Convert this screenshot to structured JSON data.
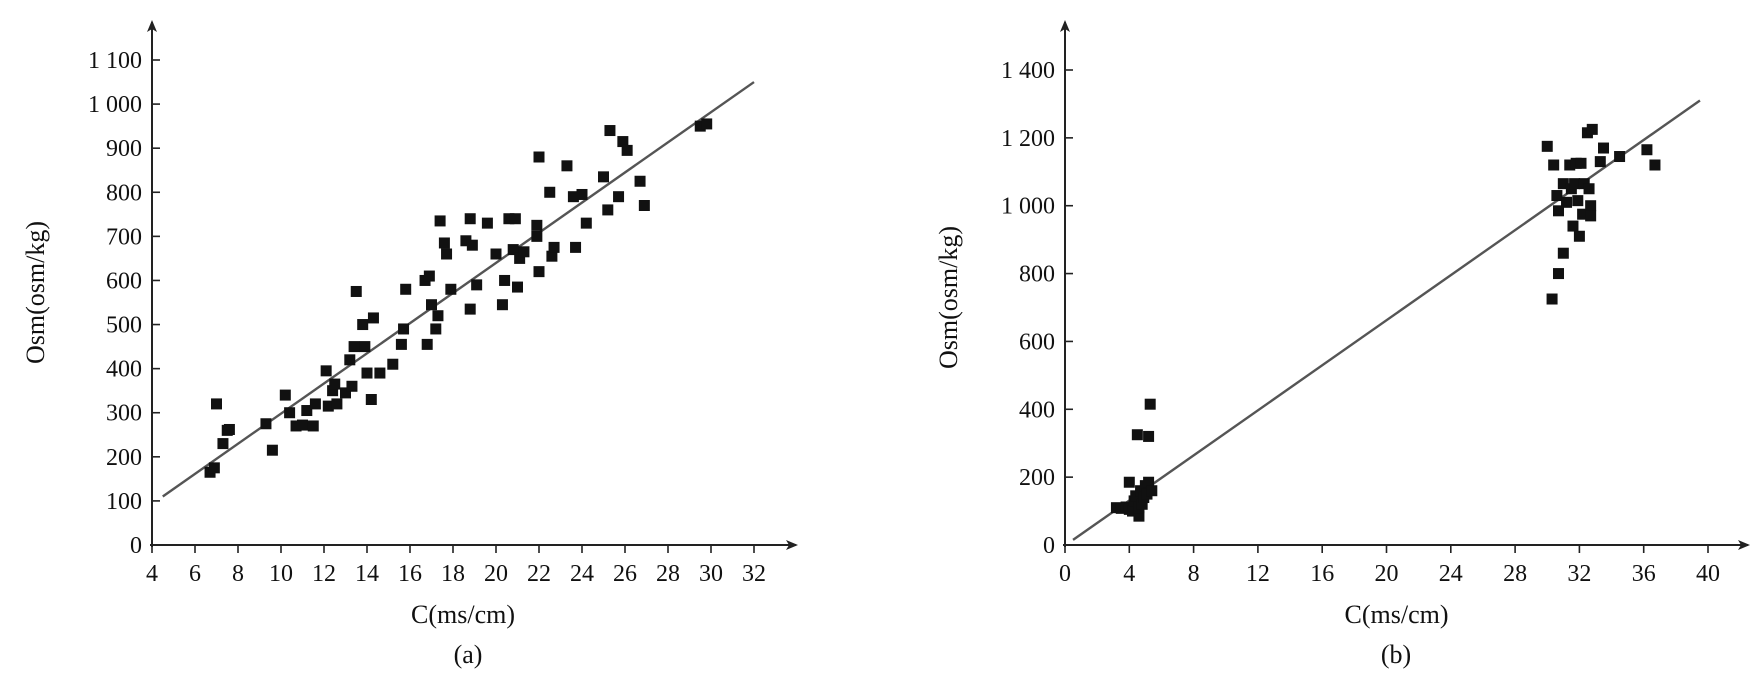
{
  "chart_data": [
    {
      "type": "scatter",
      "panel_label": "(a)",
      "xlabel": "C(ms/cm)",
      "ylabel": "Osm(osm/kg)",
      "xlim": [
        4,
        32
      ],
      "ylim": [
        0,
        1100
      ],
      "xticks": [
        "4",
        "6",
        "8",
        "10",
        "12",
        "14",
        "16",
        "18",
        "20",
        "22",
        "24",
        "26",
        "28",
        "30",
        "32"
      ],
      "yticks": [
        "0",
        "100",
        "200",
        "300",
        "400",
        "500",
        "600",
        "700",
        "800",
        "900",
        "1 000",
        "1 100"
      ],
      "fit_line": [
        [
          4.5,
          110
        ],
        [
          32,
          1050
        ]
      ],
      "points": [
        [
          6.7,
          165
        ],
        [
          6.9,
          175
        ],
        [
          7.0,
          320
        ],
        [
          7.3,
          230
        ],
        [
          7.5,
          260
        ],
        [
          7.6,
          262
        ],
        [
          9.3,
          275
        ],
        [
          9.6,
          215
        ],
        [
          10.2,
          340
        ],
        [
          10.4,
          300
        ],
        [
          10.7,
          270
        ],
        [
          11.0,
          272
        ],
        [
          11.2,
          305
        ],
        [
          11.5,
          270
        ],
        [
          11.6,
          320
        ],
        [
          12.1,
          395
        ],
        [
          12.2,
          315
        ],
        [
          12.4,
          350
        ],
        [
          12.5,
          365
        ],
        [
          12.6,
          320
        ],
        [
          13.0,
          345
        ],
        [
          13.2,
          420
        ],
        [
          13.3,
          360
        ],
        [
          13.4,
          450
        ],
        [
          13.5,
          575
        ],
        [
          13.8,
          500
        ],
        [
          13.9,
          450
        ],
        [
          14.0,
          390
        ],
        [
          14.2,
          330
        ],
        [
          14.3,
          515
        ],
        [
          14.6,
          390
        ],
        [
          15.2,
          410
        ],
        [
          15.6,
          455
        ],
        [
          15.7,
          490
        ],
        [
          15.8,
          580
        ],
        [
          16.7,
          600
        ],
        [
          16.8,
          455
        ],
        [
          16.9,
          610
        ],
        [
          17.0,
          545
        ],
        [
          17.2,
          490
        ],
        [
          17.3,
          520
        ],
        [
          17.4,
          735
        ],
        [
          17.6,
          685
        ],
        [
          17.7,
          660
        ],
        [
          17.9,
          580
        ],
        [
          18.6,
          690
        ],
        [
          18.8,
          535
        ],
        [
          18.8,
          740
        ],
        [
          18.9,
          680
        ],
        [
          19.1,
          590
        ],
        [
          19.6,
          730
        ],
        [
          20.0,
          660
        ],
        [
          20.3,
          545
        ],
        [
          20.4,
          600
        ],
        [
          20.6,
          740
        ],
        [
          20.8,
          670
        ],
        [
          20.9,
          740
        ],
        [
          21.0,
          585
        ],
        [
          21.1,
          650
        ],
        [
          21.3,
          665
        ],
        [
          21.9,
          725
        ],
        [
          21.9,
          700
        ],
        [
          22.0,
          620
        ],
        [
          22.0,
          880
        ],
        [
          22.5,
          800
        ],
        [
          22.6,
          655
        ],
        [
          22.7,
          675
        ],
        [
          23.3,
          860
        ],
        [
          23.6,
          790
        ],
        [
          23.7,
          675
        ],
        [
          24.0,
          795
        ],
        [
          24.2,
          730
        ],
        [
          25.0,
          835
        ],
        [
          25.2,
          760
        ],
        [
          25.3,
          940
        ],
        [
          25.7,
          790
        ],
        [
          25.9,
          915
        ],
        [
          26.1,
          895
        ],
        [
          26.7,
          825
        ],
        [
          26.9,
          770
        ],
        [
          29.5,
          950
        ],
        [
          29.8,
          955
        ]
      ]
    },
    {
      "type": "scatter",
      "panel_label": "(b)",
      "xlabel": "C(ms/cm)",
      "ylabel": "Osm(osm/kg)",
      "xlim": [
        0,
        40
      ],
      "ylim": [
        0,
        1400
      ],
      "xticks": [
        "0",
        "4",
        "8",
        "12",
        "16",
        "20",
        "24",
        "28",
        "32",
        "36",
        "40"
      ],
      "yticks": [
        "0",
        "200",
        "400",
        "600",
        "800",
        "1 000",
        "1 200",
        "1 400"
      ],
      "fit_line": [
        [
          0.5,
          15
        ],
        [
          39.5,
          1310
        ]
      ],
      "points": [
        [
          3.2,
          110
        ],
        [
          3.5,
          108
        ],
        [
          3.8,
          112
        ],
        [
          4.0,
          105
        ],
        [
          4.0,
          185
        ],
        [
          4.2,
          100
        ],
        [
          4.3,
          130
        ],
        [
          4.4,
          145
        ],
        [
          4.5,
          325
        ],
        [
          4.6,
          85
        ],
        [
          4.6,
          110
        ],
        [
          4.7,
          160
        ],
        [
          4.8,
          120
        ],
        [
          4.9,
          140
        ],
        [
          5.0,
          175
        ],
        [
          5.1,
          150
        ],
        [
          5.2,
          320
        ],
        [
          5.2,
          185
        ],
        [
          5.3,
          415
        ],
        [
          5.4,
          160
        ],
        [
          30.0,
          1175
        ],
        [
          30.3,
          725
        ],
        [
          30.4,
          1120
        ],
        [
          30.6,
          1030
        ],
        [
          30.7,
          985
        ],
        [
          30.7,
          800
        ],
        [
          31.0,
          860
        ],
        [
          31.0,
          1065
        ],
        [
          31.2,
          1010
        ],
        [
          31.4,
          1120
        ],
        [
          31.5,
          1050
        ],
        [
          31.6,
          940
        ],
        [
          31.7,
          1065
        ],
        [
          31.8,
          1125
        ],
        [
          31.9,
          1015
        ],
        [
          32.0,
          910
        ],
        [
          32.1,
          1125
        ],
        [
          32.2,
          975
        ],
        [
          32.3,
          1065
        ],
        [
          32.5,
          1215
        ],
        [
          32.6,
          1050
        ],
        [
          32.7,
          1000
        ],
        [
          32.8,
          1225
        ],
        [
          32.7,
          970
        ],
        [
          33.3,
          1130
        ],
        [
          33.5,
          1170
        ],
        [
          34.5,
          1145
        ],
        [
          36.2,
          1165
        ],
        [
          36.7,
          1120
        ]
      ]
    }
  ]
}
